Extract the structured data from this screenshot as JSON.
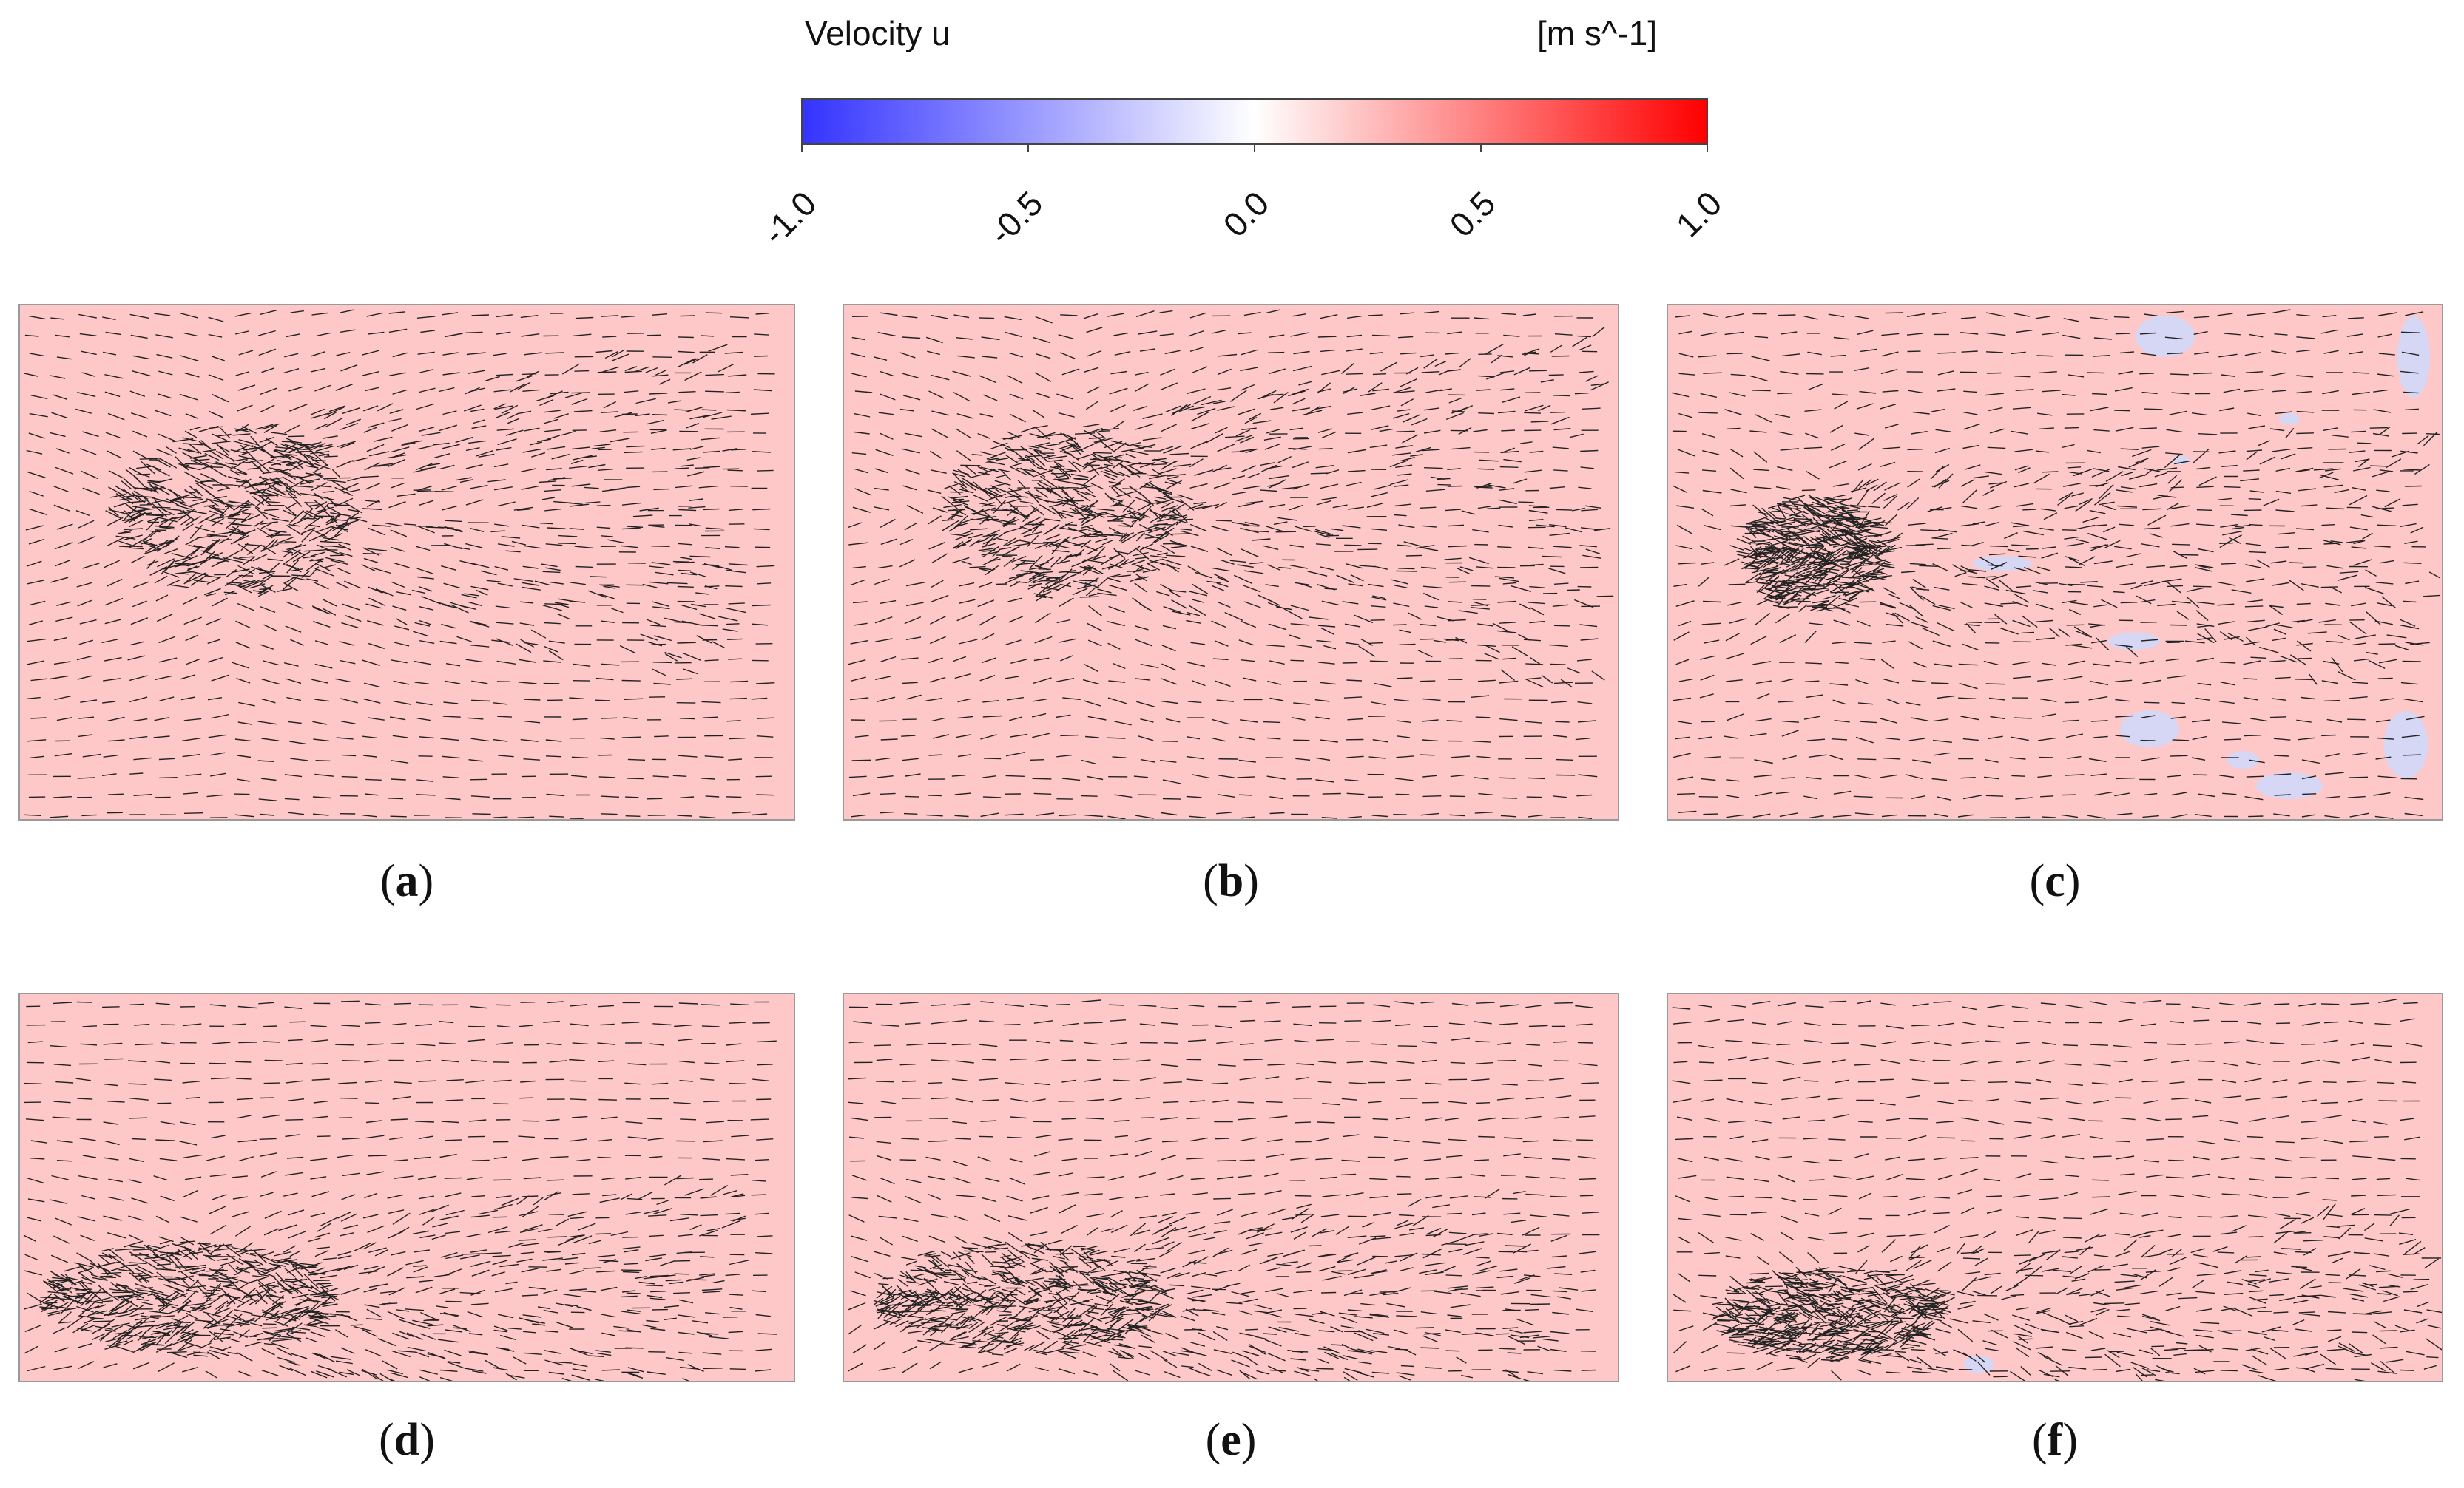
{
  "colorbar": {
    "title": "Velocity u",
    "units": "[m s^-1]",
    "ticks": [
      "-1.0",
      "-0.5",
      "0.0",
      "0.5",
      "1.0"
    ],
    "range": [
      -1.0,
      1.0
    ],
    "colors": {
      "low": "#3333ff",
      "mid": "#ffffff",
      "high": "#ff0000"
    }
  },
  "panels": [
    {
      "id": "a",
      "label_open": "(",
      "label_letter": "a",
      "label_close": ")",
      "background": "#ffc8c8"
    },
    {
      "id": "b",
      "label_open": "(",
      "label_letter": "b",
      "label_close": ")",
      "background": "#ffc8c8"
    },
    {
      "id": "c",
      "label_open": "(",
      "label_letter": "c",
      "label_close": ")",
      "background": "#ffc8c8"
    },
    {
      "id": "d",
      "label_open": "(",
      "label_letter": "d",
      "label_close": ")",
      "background": "#ffc8c8"
    },
    {
      "id": "e",
      "label_open": "(",
      "label_letter": "e",
      "label_close": ")",
      "background": "#ffc8c8"
    },
    {
      "id": "f",
      "label_open": "(",
      "label_letter": "f",
      "label_close": ")",
      "background": "#ffc8c8"
    }
  ],
  "negative_region_color": "#d6d6f5",
  "vector_color": "#222222"
}
